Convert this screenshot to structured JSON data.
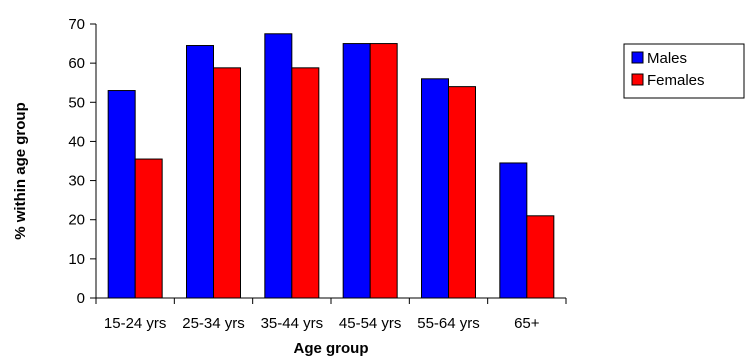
{
  "chart_data": {
    "type": "bar",
    "categories": [
      "15-24 yrs",
      "25-34 yrs",
      "35-44 yrs",
      "45-54 yrs",
      "55-64 yrs",
      "65+"
    ],
    "series": [
      {
        "name": "Males",
        "values": [
          53,
          64.5,
          67.5,
          65,
          56,
          34.5
        ],
        "color": "#0000FF"
      },
      {
        "name": "Females",
        "values": [
          35.5,
          58.8,
          58.8,
          65,
          54,
          21
        ],
        "color": "#FF0000"
      }
    ],
    "title": "",
    "xlabel": "Age group",
    "ylabel": "% within age group",
    "ylim": [
      0,
      70
    ],
    "yticks": [
      0,
      10,
      20,
      30,
      40,
      50,
      60,
      70
    ],
    "grid": false,
    "legend_position": "right"
  }
}
